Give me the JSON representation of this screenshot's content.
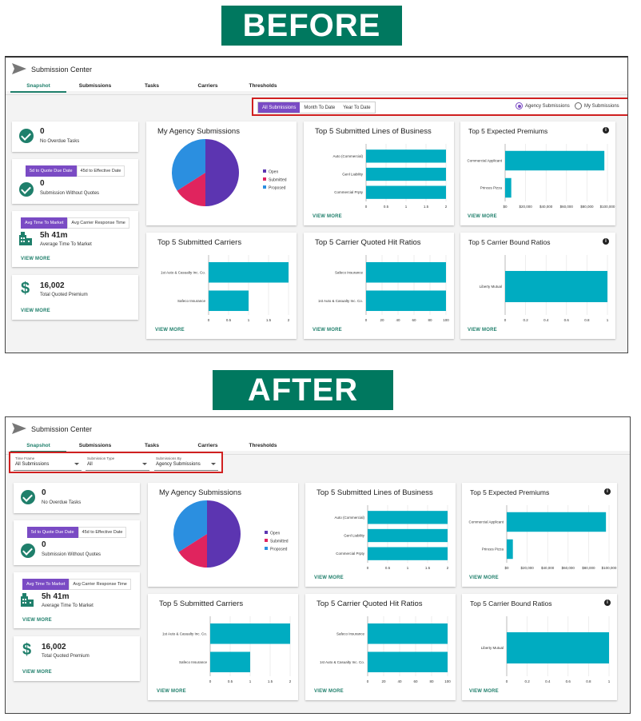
{
  "labels": {
    "before": "BEFORE",
    "after": "AFTER"
  },
  "app": {
    "title": "Submission Center",
    "tabs": [
      "Snapshot",
      "Submissions",
      "Tasks",
      "Carriers",
      "Thresholds"
    ]
  },
  "before_filters": {
    "segments": [
      "All Submissions",
      "Month To Date",
      "Year To Date"
    ],
    "radios": [
      "Agency Submissions",
      "My Submissions"
    ]
  },
  "after_filters": {
    "selects": [
      {
        "label": "Time Frame",
        "value": "All Submissions"
      },
      {
        "label": "Submission Type",
        "value": "All"
      },
      {
        "label": "Submissions By",
        "value": "Agency Submissions"
      }
    ]
  },
  "kpis": {
    "overdue": {
      "value": "0",
      "label": "No Overdue Tasks"
    },
    "quotes": {
      "toggle": [
        "5d to Quote Due Date",
        "45d to Effective Date"
      ],
      "value": "0",
      "label": "Submission Without Quotes"
    },
    "market": {
      "toggle": [
        "Avg Time To Market",
        "Avg Carrier Response Time"
      ],
      "value": "5h 41m",
      "label": "Average Time To Market"
    },
    "premium": {
      "value": "16,002",
      "label": "Total Quoted Premium"
    },
    "view_more": "VIEW MORE"
  },
  "colors": {
    "teal": "#00acc1",
    "purple": "#5c35b1",
    "red": "#e0245e",
    "blue": "#2b8fe0",
    "accent": "#1f7f6b"
  },
  "chart_data": [
    {
      "type": "pie",
      "title": "My Agency Submissions",
      "legend": [
        "Open",
        "Submitted",
        "Proposed"
      ],
      "values": [
        50,
        16,
        34
      ]
    },
    {
      "type": "bar",
      "title": "Top 5 Submitted Lines of Business",
      "categories": [
        "Auto (Commercial)",
        "Genl Liability",
        "Commercial Prpty"
      ],
      "values": [
        2,
        2,
        2
      ],
      "ticks": [
        "0",
        "0.5",
        "1",
        "1.5",
        "2"
      ],
      "xlim": [
        0,
        2
      ]
    },
    {
      "type": "bar",
      "title": "Top 5 Expected Premiums",
      "categories": [
        "Commercial Applicant",
        "Princes Pizza"
      ],
      "values": [
        97000,
        6000
      ],
      "ticks": [
        "$0",
        "$20,000",
        "$40,000",
        "$60,000",
        "$80,000",
        "$100,000"
      ],
      "xlim": [
        0,
        100000
      ]
    },
    {
      "type": "bar",
      "title": "Top 5 Submitted Carriers",
      "categories": [
        "1st Auto  & Casualty Inc. Co.",
        "Safeco Insurance"
      ],
      "values": [
        2,
        1
      ],
      "ticks": [
        "0",
        "0.5",
        "1",
        "1.5",
        "2"
      ],
      "xlim": [
        0,
        2
      ]
    },
    {
      "type": "bar",
      "title": "Top 5 Carrier Quoted Hit Ratios",
      "categories": [
        "Safeco Insurance",
        "1st Auto  & Casualty Inc. Co."
      ],
      "values": [
        100,
        100
      ],
      "ticks": [
        "0",
        "20",
        "40",
        "60",
        "80",
        "100"
      ],
      "xlim": [
        0,
        100
      ]
    },
    {
      "type": "bar",
      "title": "Top 5 Carrier Bound Ratios",
      "categories": [
        "Liberty Mutual"
      ],
      "values": [
        1
      ],
      "ticks": [
        "0",
        "0.2",
        "0.4",
        "0.6",
        "0.8",
        "1"
      ],
      "xlim": [
        0,
        1
      ]
    }
  ]
}
